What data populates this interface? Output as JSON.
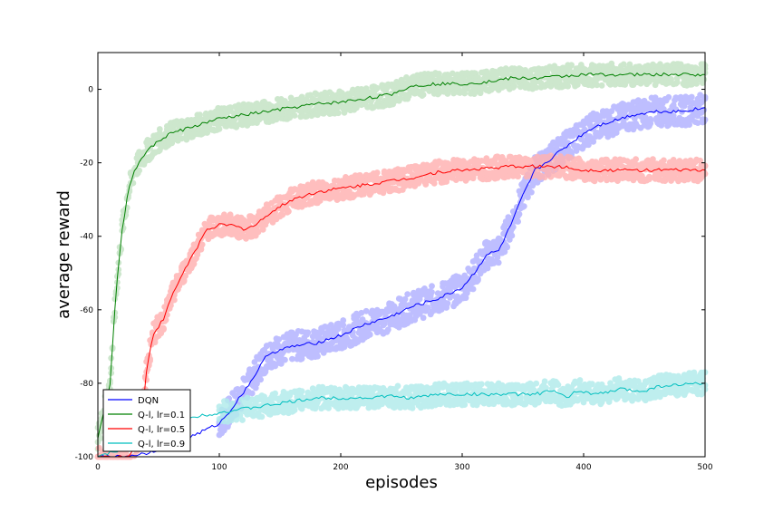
{
  "chart_data": {
    "type": "line",
    "title": "",
    "xlabel": "episodes",
    "ylabel": "average reward",
    "xlim": [
      0,
      500
    ],
    "ylim": [
      -100,
      10
    ],
    "x_ticks": [
      0,
      100,
      200,
      300,
      400,
      500
    ],
    "y_ticks": [
      -100,
      -80,
      -60,
      -40,
      -20,
      0
    ],
    "grid": false,
    "legend_position": "bottom-left",
    "series": [
      {
        "name": "DQN",
        "color": "#0000ff",
        "band_color": "#b3b3ff",
        "band_halfwidth": 4,
        "x_start": 100,
        "x_end": 500,
        "points": [
          [
            0,
            -100
          ],
          [
            20,
            -100
          ],
          [
            40,
            -99
          ],
          [
            60,
            -97
          ],
          [
            80,
            -94
          ],
          [
            100,
            -91
          ],
          [
            110,
            -87
          ],
          [
            125,
            -80
          ],
          [
            140,
            -72
          ],
          [
            160,
            -70
          ],
          [
            180,
            -69
          ],
          [
            200,
            -67
          ],
          [
            220,
            -64
          ],
          [
            240,
            -62
          ],
          [
            260,
            -59
          ],
          [
            280,
            -57
          ],
          [
            300,
            -54
          ],
          [
            310,
            -50
          ],
          [
            320,
            -45
          ],
          [
            330,
            -44
          ],
          [
            340,
            -37
          ],
          [
            350,
            -29
          ],
          [
            360,
            -22
          ],
          [
            365,
            -21
          ],
          [
            380,
            -17
          ],
          [
            400,
            -12
          ],
          [
            410,
            -10
          ],
          [
            420,
            -9
          ],
          [
            440,
            -7
          ],
          [
            460,
            -6
          ],
          [
            480,
            -6
          ],
          [
            500,
            -5
          ]
        ]
      },
      {
        "name": "Q-l, lr=0.1",
        "color": "#008000",
        "band_color": "#c5e3c5",
        "band_halfwidth": 3,
        "x_start": 0,
        "x_end": 500,
        "points": [
          [
            0,
            -95
          ],
          [
            10,
            -80
          ],
          [
            15,
            -55
          ],
          [
            20,
            -38
          ],
          [
            25,
            -28
          ],
          [
            30,
            -22
          ],
          [
            40,
            -17
          ],
          [
            50,
            -14
          ],
          [
            60,
            -12
          ],
          [
            80,
            -10
          ],
          [
            100,
            -8
          ],
          [
            120,
            -7
          ],
          [
            140,
            -6
          ],
          [
            160,
            -5
          ],
          [
            180,
            -4
          ],
          [
            200,
            -3.5
          ],
          [
            220,
            -2.5
          ],
          [
            240,
            -1.5
          ],
          [
            260,
            1
          ],
          [
            280,
            1.5
          ],
          [
            300,
            1.5
          ],
          [
            320,
            2
          ],
          [
            340,
            3
          ],
          [
            360,
            3
          ],
          [
            380,
            3.5
          ],
          [
            400,
            4
          ],
          [
            420,
            4
          ],
          [
            440,
            4
          ],
          [
            460,
            4
          ],
          [
            480,
            4
          ],
          [
            500,
            4
          ]
        ]
      },
      {
        "name": "Q-l, lr=0.5",
        "color": "#ff0000",
        "band_color": "#ffb3b3",
        "band_halfwidth": 3,
        "x_start": 0,
        "x_end": 500,
        "points": [
          [
            0,
            -100
          ],
          [
            25,
            -100
          ],
          [
            35,
            -94
          ],
          [
            40,
            -77
          ],
          [
            45,
            -67
          ],
          [
            55,
            -62
          ],
          [
            60,
            -57
          ],
          [
            70,
            -50
          ],
          [
            80,
            -44
          ],
          [
            90,
            -38
          ],
          [
            100,
            -37
          ],
          [
            110,
            -37
          ],
          [
            120,
            -38
          ],
          [
            130,
            -37
          ],
          [
            140,
            -34
          ],
          [
            150,
            -32
          ],
          [
            160,
            -30
          ],
          [
            180,
            -28
          ],
          [
            200,
            -27
          ],
          [
            220,
            -26
          ],
          [
            240,
            -25
          ],
          [
            260,
            -24
          ],
          [
            280,
            -22.5
          ],
          [
            300,
            -22
          ],
          [
            320,
            -21.5
          ],
          [
            340,
            -21
          ],
          [
            360,
            -21
          ],
          [
            380,
            -21
          ],
          [
            400,
            -22
          ],
          [
            420,
            -22
          ],
          [
            440,
            -22
          ],
          [
            460,
            -22
          ],
          [
            480,
            -22
          ],
          [
            500,
            -22
          ]
        ]
      },
      {
        "name": "Q-l, lr=0.9",
        "color": "#00bfbf",
        "band_color": "#b3ecec",
        "band_halfwidth": 3,
        "x_start": 100,
        "x_end": 500,
        "points": [
          [
            0,
            -100
          ],
          [
            20,
            -98
          ],
          [
            40,
            -96
          ],
          [
            60,
            -92
          ],
          [
            80,
            -89
          ],
          [
            100,
            -88
          ],
          [
            120,
            -87
          ],
          [
            140,
            -86
          ],
          [
            160,
            -85
          ],
          [
            180,
            -84
          ],
          [
            200,
            -84
          ],
          [
            220,
            -84
          ],
          [
            240,
            -83.5
          ],
          [
            260,
            -84
          ],
          [
            280,
            -83
          ],
          [
            300,
            -83
          ],
          [
            320,
            -83
          ],
          [
            340,
            -83
          ],
          [
            360,
            -83
          ],
          [
            375,
            -82
          ],
          [
            385,
            -84
          ],
          [
            395,
            -82
          ],
          [
            410,
            -83
          ],
          [
            420,
            -82.5
          ],
          [
            430,
            -81.5
          ],
          [
            440,
            -82
          ],
          [
            450,
            -82
          ],
          [
            460,
            -81
          ],
          [
            470,
            -80.5
          ],
          [
            480,
            -80.5
          ],
          [
            490,
            -80
          ],
          [
            500,
            -80
          ]
        ]
      }
    ]
  }
}
